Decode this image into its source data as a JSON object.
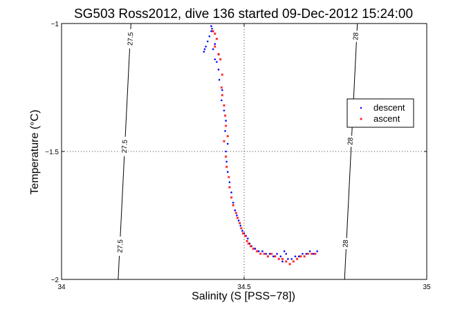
{
  "chart_data": {
    "type": "scatter",
    "title": "SG503 Ross2012, dive 136 started 09-Dec-2012 15:24:00",
    "xlabel": "Salinity (S [PSS−78])",
    "ylabel": "Temperature (°C)",
    "xlim": [
      34,
      35
    ],
    "ylim": [
      -2,
      -1
    ],
    "xticks": [
      34,
      34.5,
      35
    ],
    "yticks": [
      -2,
      -1.5,
      -1
    ],
    "xtick_labels": [
      "34",
      "34.5",
      "35"
    ],
    "ytick_labels": [
      "−2",
      "−1.5",
      "−1"
    ],
    "grid": "dotted",
    "legend_position": "right",
    "isopycnals": [
      {
        "label": "27.5",
        "points": [
          [
            34.19,
            -1.0
          ],
          [
            34.155,
            -2.0
          ]
        ]
      },
      {
        "label": "28",
        "points": [
          [
            34.81,
            -1.0
          ],
          [
            34.775,
            -2.0
          ]
        ]
      }
    ],
    "isopycnal_labels": [
      {
        "label": "27.5",
        "s": 34.188,
        "t": -1.06
      },
      {
        "label": "27.5",
        "s": 34.172,
        "t": -1.48
      },
      {
        "label": "27.5",
        "s": 34.16,
        "t": -1.87
      },
      {
        "label": "28",
        "s": 34.805,
        "t": -1.05
      },
      {
        "label": "28",
        "s": 34.79,
        "t": -1.46
      },
      {
        "label": "28",
        "s": 34.777,
        "t": -1.86
      }
    ],
    "series": [
      {
        "name": "descent",
        "color": "#0000ff",
        "marker": "dot",
        "points": [
          [
            34.39,
            -1.11
          ],
          [
            34.392,
            -1.1
          ],
          [
            34.395,
            -1.09
          ],
          [
            34.4,
            -1.07
          ],
          [
            34.405,
            -1.05
          ],
          [
            34.41,
            -1.03
          ],
          [
            34.41,
            -1.01
          ],
          [
            34.412,
            -1.02
          ],
          [
            34.42,
            -1.08
          ],
          [
            34.43,
            -1.12
          ],
          [
            34.425,
            -1.15
          ],
          [
            34.43,
            -1.18
          ],
          [
            34.432,
            -1.22
          ],
          [
            34.44,
            -1.26
          ],
          [
            34.438,
            -1.3
          ],
          [
            34.445,
            -1.34
          ],
          [
            34.45,
            -1.38
          ],
          [
            34.448,
            -1.42
          ],
          [
            34.455,
            -1.47
          ],
          [
            34.45,
            -1.5
          ],
          [
            34.452,
            -1.54
          ],
          [
            34.455,
            -1.58
          ],
          [
            34.46,
            -1.62
          ],
          [
            34.465,
            -1.66
          ],
          [
            34.47,
            -1.7
          ],
          [
            34.475,
            -1.73
          ],
          [
            34.48,
            -1.75
          ],
          [
            34.485,
            -1.77
          ],
          [
            34.49,
            -1.79
          ],
          [
            34.495,
            -1.81
          ],
          [
            34.5,
            -1.82
          ],
          [
            34.505,
            -1.83
          ],
          [
            34.51,
            -1.84
          ],
          [
            34.515,
            -1.86
          ],
          [
            34.52,
            -1.87
          ],
          [
            34.53,
            -1.88
          ],
          [
            34.54,
            -1.89
          ],
          [
            34.55,
            -1.89
          ],
          [
            34.56,
            -1.9
          ],
          [
            34.57,
            -1.9
          ],
          [
            34.58,
            -1.91
          ],
          [
            34.59,
            -1.9
          ],
          [
            34.6,
            -1.91
          ],
          [
            34.605,
            -1.93
          ],
          [
            34.61,
            -1.89
          ],
          [
            34.615,
            -1.9
          ],
          [
            34.62,
            -1.92
          ],
          [
            34.63,
            -1.92
          ],
          [
            34.64,
            -1.91
          ],
          [
            34.65,
            -1.91
          ],
          [
            34.66,
            -1.9
          ],
          [
            34.67,
            -1.9
          ],
          [
            34.68,
            -1.89
          ],
          [
            34.69,
            -1.9
          ],
          [
            34.7,
            -1.89
          ],
          [
            34.42,
            -1.14
          ],
          [
            34.415,
            -1.1
          ]
        ]
      },
      {
        "name": "ascent",
        "color": "#ff0000",
        "marker": "x",
        "points": [
          [
            34.415,
            -1.03
          ],
          [
            34.42,
            -1.04
          ],
          [
            34.425,
            -1.06
          ],
          [
            34.42,
            -1.09
          ],
          [
            34.43,
            -1.12
          ],
          [
            34.435,
            -1.14
          ],
          [
            34.44,
            -1.2
          ],
          [
            34.438,
            -1.25
          ],
          [
            34.44,
            -1.28
          ],
          [
            34.445,
            -1.32
          ],
          [
            34.448,
            -1.36
          ],
          [
            34.45,
            -1.4
          ],
          [
            34.455,
            -1.44
          ],
          [
            34.445,
            -1.46
          ],
          [
            34.45,
            -1.52
          ],
          [
            34.452,
            -1.56
          ],
          [
            34.458,
            -1.6
          ],
          [
            34.46,
            -1.64
          ],
          [
            34.465,
            -1.68
          ],
          [
            34.47,
            -1.71
          ],
          [
            34.478,
            -1.74
          ],
          [
            34.482,
            -1.76
          ],
          [
            34.488,
            -1.78
          ],
          [
            34.492,
            -1.8
          ],
          [
            34.497,
            -1.82
          ],
          [
            34.503,
            -1.83
          ],
          [
            34.508,
            -1.85
          ],
          [
            34.512,
            -1.86
          ],
          [
            34.518,
            -1.87
          ],
          [
            34.525,
            -1.88
          ],
          [
            34.535,
            -1.89
          ],
          [
            34.545,
            -1.9
          ],
          [
            34.555,
            -1.9
          ],
          [
            34.565,
            -1.91
          ],
          [
            34.575,
            -1.9
          ],
          [
            34.585,
            -1.91
          ],
          [
            34.595,
            -1.92
          ],
          [
            34.605,
            -1.92
          ],
          [
            34.615,
            -1.93
          ],
          [
            34.625,
            -1.94
          ],
          [
            34.635,
            -1.93
          ],
          [
            34.645,
            -1.92
          ],
          [
            34.655,
            -1.91
          ],
          [
            34.665,
            -1.91
          ],
          [
            34.675,
            -1.9
          ],
          [
            34.685,
            -1.9
          ],
          [
            34.695,
            -1.9
          ]
        ]
      }
    ]
  }
}
